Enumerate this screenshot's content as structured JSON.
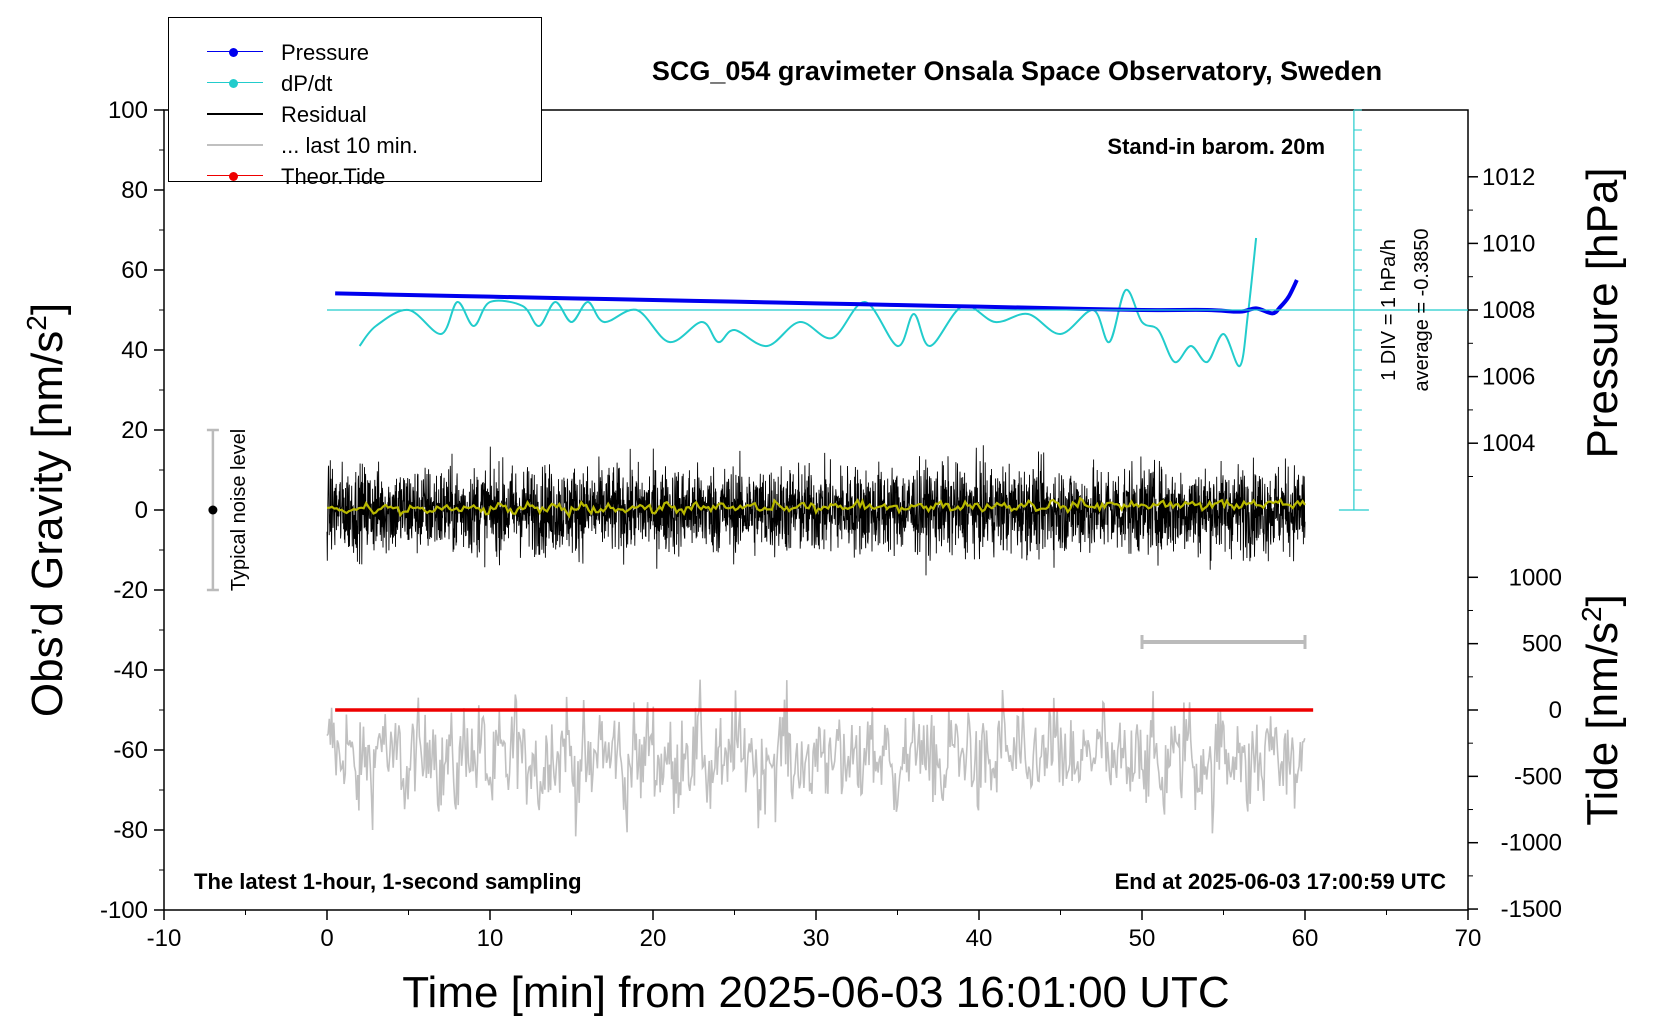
{
  "chart_data": {
    "type": "line",
    "title": "SCG_054 gravimeter Onsala Space Observatory, Sweden",
    "xlabel": "Time [min] from 2025-06-03 16:01:00 UTC",
    "ylabel_left": "Obs’d Gravity [nm/s",
    "ylabel_left_sup": "2",
    "ylabel_left_end": "]",
    "ylabel_right_top": "Pressure [hPa]",
    "ylabel_right_bottom": "Tide [nm/s",
    "ylabel_right_bottom_sup": "2",
    "ylabel_right_bottom_end": "]",
    "xlim": [
      -10,
      70
    ],
    "ylim": [
      -100,
      100
    ],
    "x_ticks": [
      "-10",
      "0",
      "10",
      "20",
      "30",
      "40",
      "50",
      "60",
      "70"
    ],
    "y_ticks": [
      "100",
      "80",
      "60",
      "40",
      "20",
      "0",
      "-20",
      "-40",
      "-60",
      "-80",
      "-100"
    ],
    "pressure_ticks": [
      "1012",
      "1010",
      "1008",
      "1006",
      "1004"
    ],
    "tide_ticks": [
      "1000",
      "500",
      "0",
      "-500",
      "-1000",
      "-1500"
    ],
    "annotations": {
      "barometer": "Stand-in barom. 20m",
      "div_note": "1 DIV = 1 hPa/h",
      "average_note": "average = -0.3850",
      "noise_label": "Typical noise level",
      "sampling_note": "The latest 1-hour, 1-second sampling",
      "end_note": "End at 2025-06-03 17:00:59 UTC"
    },
    "legend": [
      {
        "label": "Pressure",
        "color": "#0000ee",
        "marker": "dot"
      },
      {
        "label": "dP/dt",
        "color": "#22cccc",
        "marker": "dot"
      },
      {
        "label": "Residual",
        "color": "#000000",
        "marker": "none"
      },
      {
        "label": "... last 10 min.",
        "color": "#c0c0c0",
        "marker": "none"
      },
      {
        "label": "Theor.Tide",
        "color": "#ee0000",
        "marker": "dot"
      }
    ],
    "series": [
      {
        "name": "Pressure",
        "color": "#0000ee",
        "x": [
          0.5,
          5,
          10,
          15,
          20,
          25,
          30,
          35,
          40,
          45,
          50,
          54,
          56,
          57,
          58,
          58.5,
          59,
          59.5
        ],
        "y": [
          1008.5,
          1008.45,
          1008.4,
          1008.35,
          1008.3,
          1008.25,
          1008.2,
          1008.15,
          1008.1,
          1008.05,
          1008.0,
          1008.0,
          1007.95,
          1008.05,
          1007.9,
          1008.1,
          1008.4,
          1008.9
        ]
      },
      {
        "name": "dP/dt",
        "color": "#22cccc",
        "x": [
          2,
          3,
          5,
          7,
          8,
          9,
          10,
          12,
          13,
          14,
          15,
          16,
          17,
          19,
          21,
          23,
          24,
          25,
          27,
          29,
          31,
          33,
          35,
          36,
          37,
          39,
          41,
          43,
          45,
          47,
          48,
          49,
          50,
          51,
          52,
          53,
          54,
          55,
          56,
          56.5,
          57
        ],
        "y": [
          41,
          46,
          50,
          44,
          52,
          46,
          52,
          51,
          46,
          52,
          47,
          52,
          47,
          50,
          42,
          47,
          42,
          45,
          41,
          47,
          43,
          52,
          41,
          49,
          41,
          51,
          47,
          49,
          44,
          50,
          42,
          55,
          47,
          45,
          37,
          41,
          37,
          44,
          36,
          49,
          68
        ]
      },
      {
        "name": "Residual",
        "color": "#000000",
        "x_range": [
          0,
          60
        ],
        "mean": 0,
        "amplitude": 12
      },
      {
        "name": "... last 10 min.",
        "color": "#c0c0c0",
        "x_range": [
          0,
          60
        ],
        "mean": -62,
        "amplitude": 10
      },
      {
        "name": "Theor.Tide",
        "color": "#ee0000",
        "x": [
          0.5,
          60.5
        ],
        "y": [
          -50,
          -50
        ]
      }
    ],
    "dpdt_reference": {
      "x": 63,
      "y": 50
    },
    "noise_bar": {
      "x": -7,
      "y": 0,
      "low": -20,
      "high": 20
    },
    "window_bar": {
      "x0": 50,
      "x1": 60,
      "y": -33
    }
  }
}
